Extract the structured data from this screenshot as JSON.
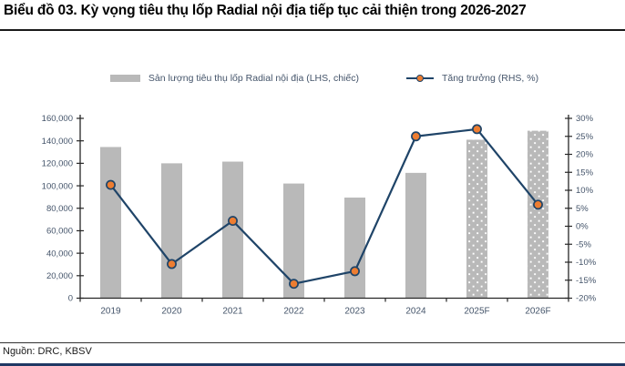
{
  "title": "Biểu đồ 03. Kỳ vọng tiêu thụ lốp Radial nội địa tiếp tục cải thiện trong 2026-2027",
  "source": "Nguồn: DRC, KBSV",
  "legend": {
    "volume_label": "Sản lượng tiêu thụ lốp Radial nội địa (LHS, chiếc)",
    "growth_label": "Tăng trưởng (RHS, %)"
  },
  "colors": {
    "bar": "#b9b9b9",
    "bar_dot": "#ffffff",
    "line": "#1f4468",
    "marker": "#ed7d31",
    "axis": "#262626",
    "tick_label": "#44546a",
    "strip": "#1f3864"
  },
  "chart_data": {
    "type": "combo",
    "title": "Biểu đồ 03. Kỳ vọng tiêu thụ lốp Radial nội địa tiếp tục cải thiện trong 2026-2027",
    "categories": [
      "2019",
      "2020",
      "2021",
      "2022",
      "2023",
      "2024",
      "2025F",
      "2026F"
    ],
    "forecast_flags": [
      false,
      false,
      false,
      false,
      false,
      false,
      true,
      true
    ],
    "series": [
      {
        "name": "Sản lượng tiêu thụ lốp Radial nội địa (LHS, chiếc)",
        "type": "bar",
        "axis": "left",
        "values": [
          134500,
          120000,
          121500,
          102000,
          89500,
          111500,
          141000,
          149000
        ]
      },
      {
        "name": "Tăng trưởng (RHS, %)",
        "type": "line",
        "axis": "right",
        "values": [
          11.5,
          -10.5,
          1.5,
          -16,
          -12.5,
          25,
          27,
          6
        ]
      }
    ],
    "left_axis": {
      "min": 0,
      "max": 160000,
      "step": 20000,
      "tick_labels": [
        "160,000",
        "140,000",
        "120,000",
        "100,000",
        "80,000",
        "60,000",
        "40,000",
        "20,000",
        "0"
      ]
    },
    "right_axis": {
      "min": -20,
      "max": 30,
      "step": 5,
      "tick_labels": [
        "30%",
        "25%",
        "20%",
        "15%",
        "10%",
        "5%",
        "0%",
        "-5%",
        "-10%",
        "-15%",
        "-20%"
      ]
    },
    "legend_position": "top",
    "grid": false
  }
}
